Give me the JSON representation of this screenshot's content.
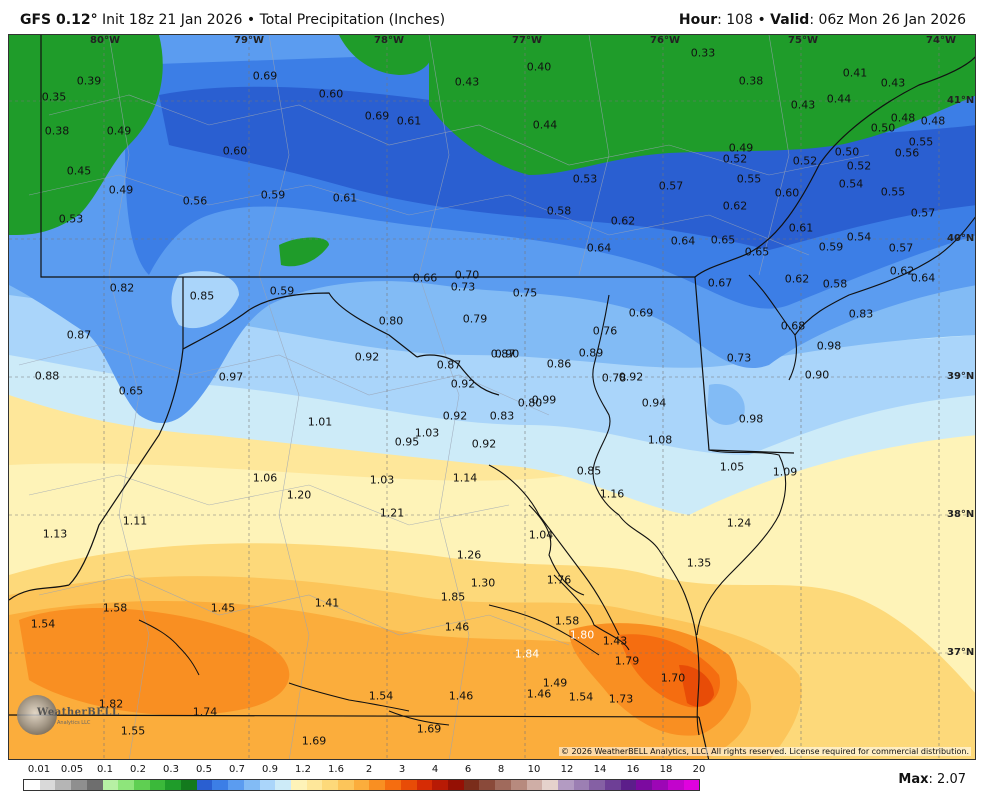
{
  "header": {
    "model": "GFS 0.12",
    "degree": "°",
    "init": "Init 18z 21 Jan 2026",
    "bullet": "•",
    "field": "Total Precipitation (Inches)",
    "hour_label": "Hour",
    "hour_value": ": 108",
    "valid_label": "Valid",
    "valid_value": ": 06z Mon 26 Jan 2026"
  },
  "map": {
    "longitude_labels": [
      "80°W",
      "79°W",
      "78°W",
      "77°W",
      "76°W",
      "75°W",
      "74°W"
    ],
    "latitude_labels": [
      "41°N",
      "40°N",
      "39°N",
      "38°N",
      "37°N"
    ],
    "copyright": "© 2026 WeatherBELL Analytics, LLC. All rights reserved. License required for commercial distribution.",
    "logo_text": "WeatherBELL",
    "logo_subtext": "Analytics LLC",
    "point_values": [
      "0.39",
      "0.35",
      "0.38",
      "0.49",
      "0.45",
      "0.49",
      "0.53",
      "0.69",
      "0.60",
      "0.69",
      "0.61",
      "0.60",
      "0.56",
      "0.59",
      "0.61",
      "0.43",
      "0.40",
      "0.44",
      "0.33",
      "0.38",
      "0.41",
      "0.43",
      "0.43",
      "0.44",
      "0.50",
      "0.48",
      "0.48",
      "0.49",
      "0.52",
      "0.52",
      "0.50",
      "0.52",
      "0.55",
      "0.56",
      "0.53",
      "0.57",
      "0.55",
      "0.54",
      "0.55",
      "0.57",
      "0.58",
      "0.62",
      "0.62",
      "0.60",
      "0.64",
      "0.64",
      "0.65",
      "0.65",
      "0.61",
      "0.59",
      "0.54",
      "0.57",
      "0.62",
      "0.64",
      "0.82",
      "0.85",
      "0.59",
      "0.66",
      "0.70",
      "0.73",
      "0.75",
      "0.67",
      "0.62",
      "0.58",
      "0.87",
      "0.80",
      "0.79",
      "0.87",
      "0.76",
      "0.69",
      "0.68",
      "0.83",
      "0.92",
      "0.87",
      "0.90",
      "0.89",
      "0.86",
      "0.73",
      "0.98",
      "0.88",
      "0.65",
      "0.97",
      "0.92",
      "0.80",
      "0.78",
      "0.92",
      "0.90",
      "0.99",
      "0.94",
      "0.92",
      "0.83",
      "0.98",
      "1.01",
      "1.03",
      "0.95",
      "0.92",
      "1.08",
      "1.06",
      "1.03",
      "1.14",
      "0.85",
      "1.05",
      "1.09",
      "1.20",
      "1.16",
      "1.11",
      "1.21",
      "1.13",
      "1.04",
      "1.24",
      "1.26",
      "1.35",
      "1.30",
      "1.76",
      "1.58",
      "1.45",
      "1.41",
      "1.85",
      "1.54",
      "1.46",
      "1.58",
      "1.80",
      "1.43",
      "1.84",
      "1.79",
      "1.70",
      "1.54",
      "1.46",
      "1.46",
      "1.54",
      "1.49",
      "1.73",
      "1.82",
      "1.74",
      "1.55",
      "1.69",
      "1.69"
    ]
  },
  "legend": {
    "labels": [
      "0.01",
      "0.05",
      "0.1",
      "0.2",
      "0.3",
      "0.5",
      "0.7",
      "0.9",
      "1.2",
      "1.6",
      "2",
      "3",
      "4",
      "6",
      "8",
      "10",
      "12",
      "14",
      "16",
      "18",
      "20"
    ],
    "colors": [
      "#ffffff",
      "#d9d9d9",
      "#b5b5b5",
      "#8f8f8f",
      "#6e6e6e",
      "#b7f0a4",
      "#8ee57b",
      "#5fcf52",
      "#3bb93a",
      "#1f9c2a",
      "#137a1d",
      "#2a5fd1",
      "#3c7ee6",
      "#5b9cf0",
      "#82bbf5",
      "#aad5fa",
      "#cdebf8",
      "#fef3b8",
      "#fee79a",
      "#fdd97a",
      "#fcc55a",
      "#fbad3c",
      "#f98f22",
      "#f56d10",
      "#e84c07",
      "#d62c05",
      "#b81a05",
      "#951004",
      "#7a2d1b",
      "#8a4a3a",
      "#a06a5c",
      "#b78a7e",
      "#cfaea6",
      "#e5d2cc",
      "#b39bc2",
      "#9c7fb3",
      "#8560a4",
      "#6e3f96",
      "#5c1e8a",
      "#7c0aa0",
      "#9d06b6",
      "#c204cc",
      "#e002de"
    ]
  },
  "footer": {
    "max_label": "Max",
    "max_value": ": 2.07"
  }
}
